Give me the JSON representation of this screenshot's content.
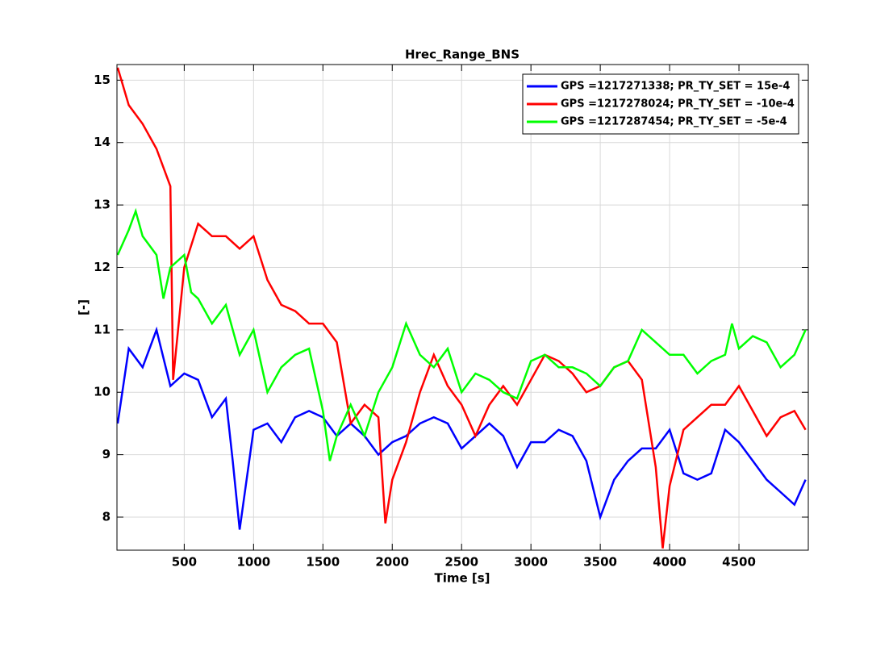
{
  "chart_data": {
    "type": "line",
    "title": "Hrec_Range_BNS",
    "xlabel": "Time [s]",
    "ylabel": "[-]",
    "xlim": [
      15,
      5000
    ],
    "ylim": [
      7.47,
      15.25
    ],
    "xticks": [
      500,
      1000,
      1500,
      2000,
      2500,
      3000,
      3500,
      4000,
      4500
    ],
    "yticks": [
      8,
      9,
      10,
      11,
      12,
      13,
      14,
      15
    ],
    "grid": true,
    "legend": "top-right",
    "series": [
      {
        "name": "GPS =1217271338; PR_TY_SET = 15e-4",
        "color": "#0000ff",
        "x": [
          20,
          100,
          200,
          300,
          400,
          500,
          600,
          700,
          800,
          850,
          900,
          1000,
          1100,
          1200,
          1300,
          1400,
          1500,
          1600,
          1700,
          1800,
          1900,
          2000,
          2100,
          2200,
          2300,
          2400,
          2500,
          2600,
          2700,
          2800,
          2900,
          3000,
          3100,
          3200,
          3300,
          3400,
          3500,
          3600,
          3700,
          3800,
          3900,
          4000,
          4100,
          4200,
          4300,
          4400,
          4500,
          4600,
          4700,
          4800,
          4900,
          4980
        ],
        "values": [
          9.5,
          10.7,
          10.4,
          11.0,
          10.1,
          10.3,
          10.2,
          9.6,
          9.9,
          8.9,
          7.8,
          9.4,
          9.5,
          9.2,
          9.6,
          9.7,
          9.6,
          9.3,
          9.5,
          9.3,
          9.0,
          9.2,
          9.3,
          9.5,
          9.6,
          9.5,
          9.1,
          9.3,
          9.5,
          9.3,
          8.8,
          9.2,
          9.2,
          9.4,
          9.3,
          8.9,
          8.0,
          8.6,
          8.9,
          9.1,
          9.1,
          9.4,
          8.7,
          8.6,
          8.7,
          9.4,
          9.2,
          8.9,
          8.6,
          8.4,
          8.2,
          8.6
        ]
      },
      {
        "name": "GPS =1217278024; PR_TY_SET = -10e-4",
        "color": "#ff0000",
        "x": [
          20,
          100,
          200,
          300,
          400,
          420,
          500,
          600,
          700,
          800,
          900,
          1000,
          1100,
          1200,
          1300,
          1400,
          1500,
          1600,
          1700,
          1800,
          1900,
          1950,
          2000,
          2100,
          2200,
          2300,
          2400,
          2500,
          2600,
          2700,
          2800,
          2900,
          3000,
          3100,
          3200,
          3300,
          3400,
          3500,
          3600,
          3700,
          3800,
          3900,
          3950,
          4000,
          4100,
          4200,
          4300,
          4400,
          4500,
          4600,
          4700,
          4800,
          4900,
          4980
        ],
        "values": [
          15.2,
          14.6,
          14.3,
          13.9,
          13.3,
          10.2,
          12.0,
          12.7,
          12.5,
          12.5,
          12.3,
          12.5,
          11.8,
          11.4,
          11.3,
          11.1,
          11.1,
          10.8,
          9.5,
          9.8,
          9.6,
          7.9,
          8.6,
          9.2,
          10.0,
          10.6,
          10.1,
          9.8,
          9.3,
          9.8,
          10.1,
          9.8,
          10.2,
          10.6,
          10.5,
          10.3,
          10.0,
          10.1,
          10.4,
          10.5,
          10.2,
          8.8,
          7.5,
          8.5,
          9.4,
          9.6,
          9.8,
          9.8,
          10.1,
          9.7,
          9.3,
          9.6,
          9.7,
          9.4
        ]
      },
      {
        "name": "GPS =1217287454; PR_TY_SET = -5e-4",
        "color": "#00ff00",
        "x": [
          20,
          100,
          150,
          200,
          300,
          350,
          400,
          500,
          550,
          600,
          700,
          800,
          900,
          1000,
          1100,
          1200,
          1300,
          1400,
          1500,
          1550,
          1600,
          1700,
          1800,
          1900,
          2000,
          2100,
          2200,
          2300,
          2400,
          2500,
          2600,
          2700,
          2800,
          2900,
          3000,
          3100,
          3200,
          3300,
          3400,
          3500,
          3600,
          3700,
          3800,
          3900,
          4000,
          4100,
          4200,
          4300,
          4400,
          4450,
          4500,
          4600,
          4700,
          4800,
          4900,
          4980
        ],
        "values": [
          12.2,
          12.6,
          12.9,
          12.5,
          12.2,
          11.5,
          12.0,
          12.2,
          11.6,
          11.5,
          11.1,
          11.4,
          10.6,
          11.0,
          10.0,
          10.4,
          10.6,
          10.7,
          9.7,
          8.9,
          9.3,
          9.8,
          9.3,
          10.0,
          10.4,
          11.1,
          10.6,
          10.4,
          10.7,
          10.0,
          10.3,
          10.2,
          10.0,
          9.9,
          10.5,
          10.6,
          10.4,
          10.4,
          10.3,
          10.1,
          10.4,
          10.5,
          11.0,
          10.8,
          10.6,
          10.6,
          10.3,
          10.5,
          10.6,
          11.1,
          10.7,
          10.9,
          10.8,
          10.4,
          10.6,
          11.0
        ]
      }
    ]
  }
}
